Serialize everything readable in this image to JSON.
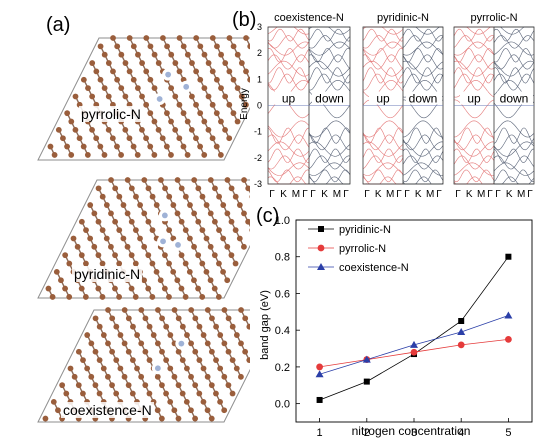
{
  "panel_labels": {
    "a": "(a)",
    "b": "(b)",
    "c": "(c)"
  },
  "lattice_panels": [
    {
      "caption": "pyrrolic-N"
    },
    {
      "caption": "pyridinic-N"
    },
    {
      "caption": "coexistence-N"
    }
  ],
  "colors": {
    "carbon": "#9a5e3c",
    "nitrogen": "#9fb2d6",
    "bond": "#8a6a58",
    "cell": "#8e8e8e",
    "spin_up": "#e47a7a",
    "spin_down": "#5a6478"
  },
  "band_structure": {
    "ylabel": "Energy",
    "ylim": [
      -3,
      3
    ],
    "y_ticks": [
      "3",
      "2",
      "1",
      "0",
      "-1",
      "-2",
      "-3"
    ],
    "k_labels": [
      "Γ",
      "K",
      "M",
      "Γ"
    ],
    "panels": [
      {
        "title": "coexistence-N",
        "up_label": "up",
        "down_label": "down"
      },
      {
        "title": "pyridinic-N",
        "up_label": "up",
        "down_label": "down"
      },
      {
        "title": "pyrrolic-N",
        "up_label": "up",
        "down_label": "down"
      }
    ]
  },
  "chart_data": {
    "type": "line",
    "x": [
      1,
      2,
      3,
      4,
      5
    ],
    "xlabel": "nitrogen concentration",
    "ylabel": "band gap (eV)",
    "xlim": [
      0.5,
      5.5
    ],
    "ylim": [
      -0.1,
      1.0
    ],
    "x_ticks": [
      "1",
      "2",
      "3",
      "4",
      "5"
    ],
    "y_ticks": [
      "0.0",
      "0.2",
      "0.4",
      "0.6",
      "0.8",
      "1.0"
    ],
    "legend_position": "top-left",
    "series": [
      {
        "name": "pyridinic-N",
        "values": [
          0.02,
          0.12,
          0.27,
          0.45,
          0.8
        ],
        "color": "#000000",
        "marker": "square"
      },
      {
        "name": "pyrrolic-N",
        "values": [
          0.2,
          0.24,
          0.28,
          0.32,
          0.35
        ],
        "color": "#e53b3b",
        "marker": "circle"
      },
      {
        "name": "coexistence-N",
        "values": [
          0.16,
          0.24,
          0.32,
          0.39,
          0.48
        ],
        "color": "#2b3fa8",
        "marker": "triangle"
      }
    ]
  }
}
